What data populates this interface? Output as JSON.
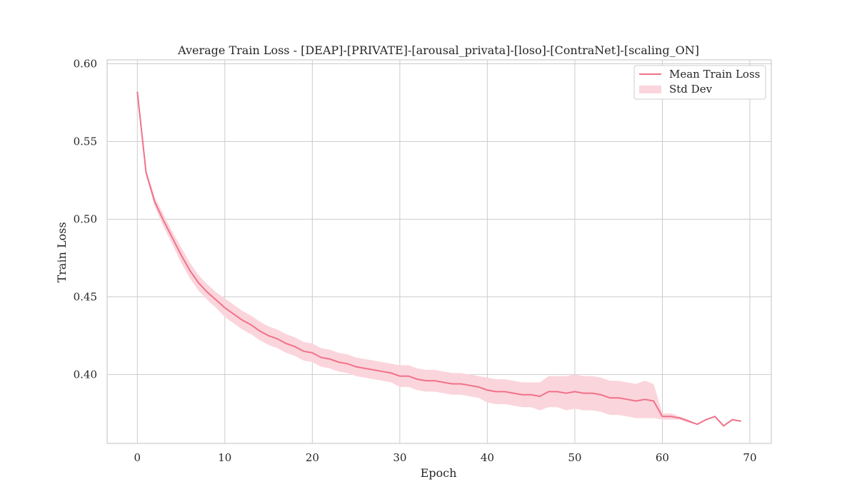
{
  "chart_data": {
    "type": "line",
    "title": "Average Train Loss - [DEAP]-[PRIVATE]-[arousal_privata]-[loso]-[ContraNet]-[scaling_ON]",
    "xlabel": "Epoch",
    "ylabel": "Train Loss",
    "xlim": [
      -3.45,
      72.45
    ],
    "ylim": [
      0.3557,
      0.6025
    ],
    "xticks": [
      0,
      10,
      20,
      30,
      40,
      50,
      60,
      70
    ],
    "xtick_labels": [
      "0",
      "10",
      "20",
      "30",
      "40",
      "50",
      "60",
      "70"
    ],
    "yticks": [
      0.4,
      0.45,
      0.5,
      0.55,
      0.6
    ],
    "ytick_labels": [
      "0.40",
      "0.45",
      "0.50",
      "0.55",
      "0.60"
    ],
    "grid": true,
    "legend_position": "upper right",
    "legend": [
      "Mean Train Loss",
      "Std Dev"
    ],
    "colors": {
      "line": "#f0728a",
      "band": "#fbd5dc",
      "grid": "#cccccc",
      "spine": "#cccccc"
    },
    "x": [
      0,
      1,
      2,
      3,
      4,
      5,
      6,
      7,
      8,
      9,
      10,
      11,
      12,
      13,
      14,
      15,
      16,
      17,
      18,
      19,
      20,
      21,
      22,
      23,
      24,
      25,
      26,
      27,
      28,
      29,
      30,
      31,
      32,
      33,
      34,
      35,
      36,
      37,
      38,
      39,
      40,
      41,
      42,
      43,
      44,
      45,
      46,
      47,
      48,
      49,
      50,
      51,
      52,
      53,
      54,
      55,
      56,
      57,
      58,
      59,
      60,
      61,
      62,
      63,
      64,
      65,
      66,
      67,
      68,
      69
    ],
    "series": [
      {
        "name": "Mean Train Loss",
        "values": [
          0.582,
          0.53,
          0.511,
          0.499,
          0.488,
          0.477,
          0.467,
          0.459,
          0.453,
          0.448,
          0.443,
          0.439,
          0.435,
          0.432,
          0.428,
          0.425,
          0.423,
          0.42,
          0.418,
          0.415,
          0.414,
          0.411,
          0.41,
          0.408,
          0.407,
          0.405,
          0.404,
          0.403,
          0.402,
          0.401,
          0.399,
          0.399,
          0.397,
          0.396,
          0.396,
          0.395,
          0.394,
          0.394,
          0.393,
          0.392,
          0.39,
          0.389,
          0.389,
          0.388,
          0.387,
          0.387,
          0.386,
          0.389,
          0.389,
          0.388,
          0.389,
          0.388,
          0.388,
          0.387,
          0.385,
          0.385,
          0.384,
          0.383,
          0.384,
          0.383,
          0.373,
          0.373,
          0.372,
          0.37,
          0.368,
          0.371,
          0.373,
          0.367,
          0.371,
          0.37
        ],
        "std": [
          0.001,
          0.002,
          0.003,
          0.004,
          0.004,
          0.005,
          0.005,
          0.005,
          0.005,
          0.005,
          0.006,
          0.006,
          0.006,
          0.006,
          0.006,
          0.006,
          0.006,
          0.006,
          0.006,
          0.006,
          0.006,
          0.006,
          0.006,
          0.006,
          0.006,
          0.006,
          0.006,
          0.006,
          0.006,
          0.006,
          0.007,
          0.007,
          0.007,
          0.007,
          0.007,
          0.007,
          0.007,
          0.007,
          0.007,
          0.007,
          0.008,
          0.008,
          0.008,
          0.008,
          0.008,
          0.008,
          0.009,
          0.01,
          0.01,
          0.011,
          0.011,
          0.011,
          0.011,
          0.011,
          0.011,
          0.011,
          0.011,
          0.011,
          0.012,
          0.011,
          0.002,
          0.002,
          0.001,
          0.001,
          0.0,
          0.0,
          0.0,
          0.0,
          0.0,
          0.0
        ]
      }
    ]
  }
}
